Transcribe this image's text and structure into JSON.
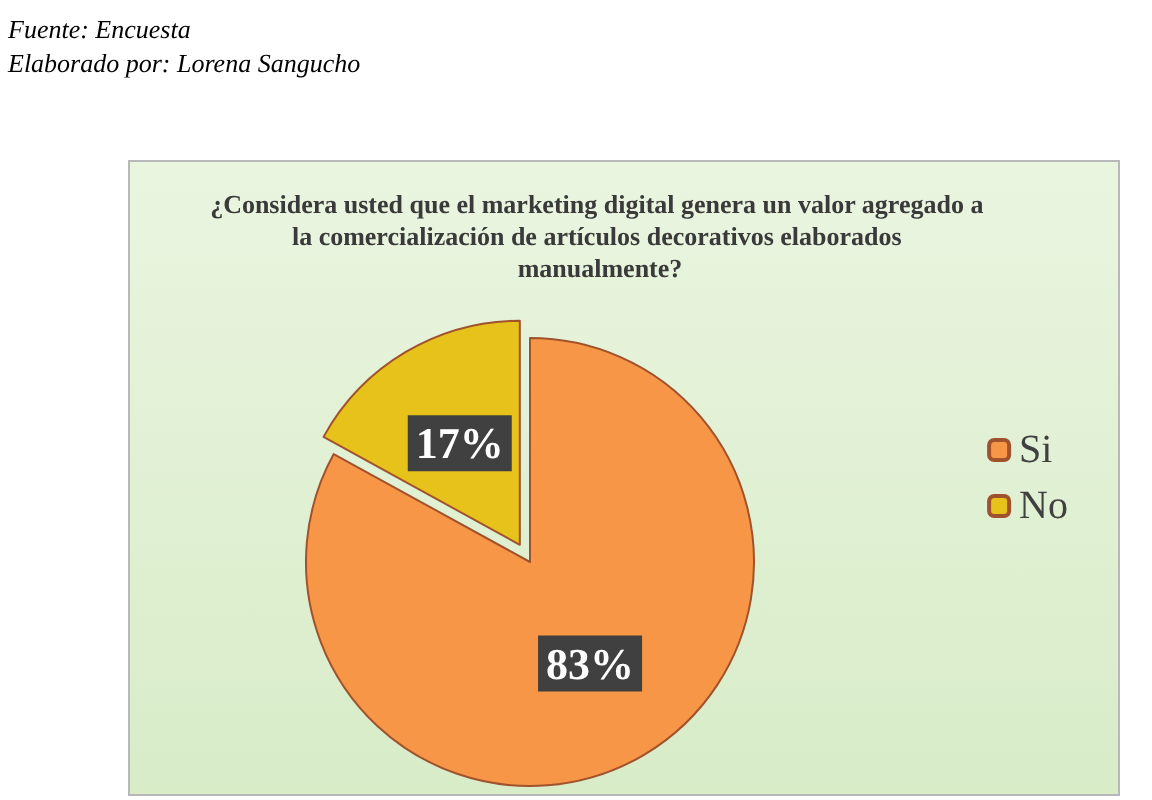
{
  "chart_data": {
    "type": "pie",
    "title": "¿Considera usted que el marketing digital genera un valor agregado a la comercialización de artículos decorativos elaborados manualmente?",
    "categories": [
      "Si",
      "No"
    ],
    "values": [
      83,
      17
    ],
    "colors": [
      "#f79646",
      "#e6c21a"
    ],
    "value_labels": [
      "83%",
      "17%"
    ],
    "legend": "right",
    "annotations": [
      "Fuente: Encuesta",
      "Elaborado por: Lorena Sangucho"
    ]
  }
}
